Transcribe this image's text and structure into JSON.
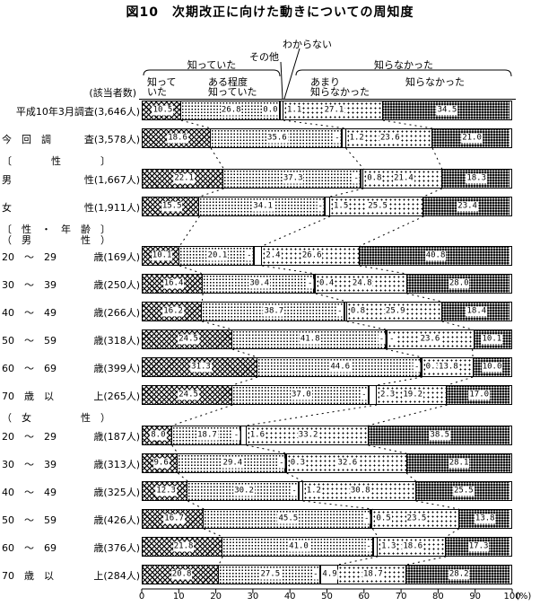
{
  "title": "図10　次期改正に向けた動きについての周知度",
  "respondents_header": "(該当者数)",
  "legend": {
    "group_knew": "知っていた",
    "group_not_knew": "知らなかった",
    "other": "その他",
    "dont_know": "わからない",
    "sub_knew": "知って\nいた",
    "sub_somewhat": "ある程度\n知っていた",
    "sub_not_much": "あまり\n知らなかった",
    "sub_not_knew": "知らなかった"
  },
  "axis": {
    "ticks": [
      "0",
      "10",
      "20",
      "30",
      "40",
      "50",
      "60",
      "70",
      "80",
      "90",
      "100"
    ],
    "unit": "(%)"
  },
  "chart_data": {
    "type": "bar",
    "stacked": true,
    "orientation": "horizontal",
    "xlim": [
      0,
      100
    ],
    "unit": "%",
    "segments": [
      "知っていた",
      "ある程度知っていた",
      "その他",
      "わからない",
      "あまり知らなかった",
      "知らなかった"
    ],
    "groups": [
      {
        "label": "知っていた",
        "covers": [
          "知っていた",
          "ある程度知っていた"
        ]
      },
      {
        "label": "知らなかった",
        "covers": [
          "あまり知らなかった",
          "知らなかった"
        ]
      }
    ],
    "rows": [
      {
        "kind": "bar",
        "label": "",
        "label2": "平成10年3月調査",
        "count": "(3,646人)",
        "values": [
          "10.5",
          "26.8",
          "0.0",
          "1.1",
          "27.1",
          "34.5"
        ]
      },
      {
        "kind": "bar",
        "label": "今　回　調",
        "label2": "査",
        "count": "(3,578人)",
        "values": [
          "18.6",
          "35.6",
          "-",
          "1.2",
          "23.6",
          "21.0"
        ]
      },
      {
        "kind": "section",
        "lines": [
          "〔　　　　性　　　　〕"
        ]
      },
      {
        "kind": "bar",
        "label": "男",
        "label2": "性",
        "count": "(1,667人)",
        "values": [
          "22.1",
          "37.3",
          "-",
          "0.8",
          "21.4",
          "18.3"
        ]
      },
      {
        "kind": "bar",
        "label": "女",
        "label2": "性",
        "count": "(1,911人)",
        "values": [
          "15.5",
          "34.1",
          "-",
          "1.5",
          "25.5",
          "23.4"
        ]
      },
      {
        "kind": "section",
        "lines": [
          "〔　性　・　年　齢　〕",
          "（　男　　　　　性　）"
        ]
      },
      {
        "kind": "bar",
        "label": "20　〜　29",
        "label2": "歳",
        "count": "(169人)",
        "values": [
          "10.1",
          "20.1",
          "-",
          "2.4",
          "26.6",
          "40.8"
        ]
      },
      {
        "kind": "bar",
        "label": "30　〜　39",
        "label2": "歳",
        "count": "(250人)",
        "values": [
          "16.4",
          "30.4",
          "-",
          "0.4",
          "24.8",
          "28.0"
        ]
      },
      {
        "kind": "bar",
        "label": "40　〜　49",
        "label2": "歳",
        "count": "(266人)",
        "values": [
          "16.2",
          "38.7",
          "-",
          "0.8",
          "25.9",
          "18.4"
        ]
      },
      {
        "kind": "bar",
        "label": "50　〜　59",
        "label2": "歳",
        "count": "(318人)",
        "values": [
          "24.5",
          "41.8",
          "-",
          "-",
          "23.6",
          "10.1"
        ]
      },
      {
        "kind": "bar",
        "label": "60　〜　69",
        "label2": "歳",
        "count": "(399人)",
        "values": [
          "31.3",
          "44.6",
          "-",
          "0.3",
          "13.8",
          "10.0"
        ]
      },
      {
        "kind": "bar",
        "label": "70　歳　以",
        "label2": "上",
        "count": "(265人)",
        "values": [
          "24.5",
          "37.0",
          "-",
          "2.3",
          "19.2",
          "17.0"
        ]
      },
      {
        "kind": "section",
        "lines": [
          "（　女　　　　　性　）"
        ]
      },
      {
        "kind": "bar",
        "label": "20　〜　29",
        "label2": "歳",
        "count": "(187人)",
        "values": [
          "8.0",
          "18.7",
          "-",
          "1.6",
          "33.2",
          "38.5"
        ]
      },
      {
        "kind": "bar",
        "label": "30　〜　39",
        "label2": "歳",
        "count": "(313人)",
        "values": [
          "9.6",
          "29.4",
          "-",
          "0.3",
          "32.6",
          "28.1"
        ]
      },
      {
        "kind": "bar",
        "label": "40　〜　49",
        "label2": "歳",
        "count": "(325人)",
        "values": [
          "12.3",
          "30.2",
          "-",
          "1.2",
          "30.8",
          "25.5"
        ]
      },
      {
        "kind": "bar",
        "label": "50　〜　59",
        "label2": "歳",
        "count": "(426人)",
        "values": [
          "16.7",
          "45.5",
          "-",
          "0.5",
          "23.5",
          "13.8"
        ]
      },
      {
        "kind": "bar",
        "label": "60　〜　69",
        "label2": "歳",
        "count": "(376人)",
        "values": [
          "21.8",
          "41.0",
          "-",
          "1.3",
          "18.6",
          "17.3"
        ]
      },
      {
        "kind": "bar",
        "label": "70　歳　以",
        "label2": "上",
        "count": "(284人)",
        "values": [
          "20.8",
          "27.5",
          "-",
          "4.9",
          "18.7",
          "28.2"
        ]
      }
    ]
  }
}
